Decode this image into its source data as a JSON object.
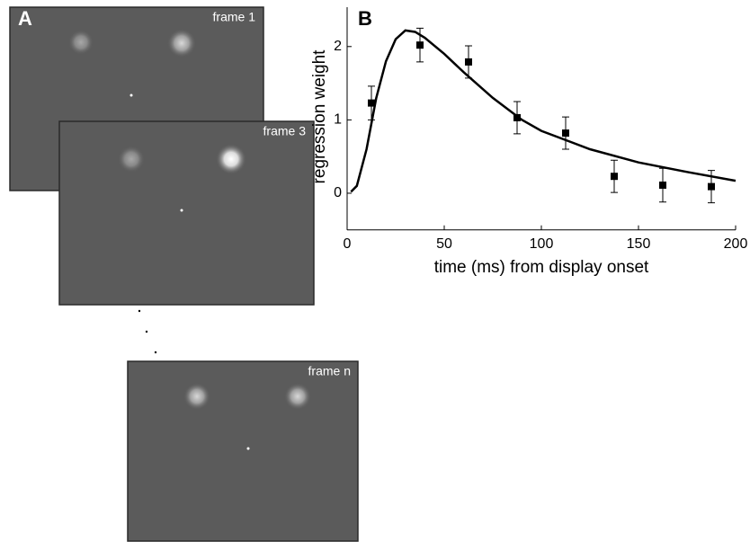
{
  "panel_a": {
    "label": "A",
    "frames": [
      "frame 1",
      "frame 3",
      "frame n"
    ]
  },
  "chart_data": {
    "type": "scatter",
    "panel_label": "B",
    "xlabel": "time (ms) from display onset",
    "ylabel": "regression weight",
    "xlim": [
      0,
      200
    ],
    "ylim": [
      -0.5,
      2.5
    ],
    "xticks": [
      0,
      50,
      100,
      150,
      200
    ],
    "yticks": [
      0,
      1,
      2
    ],
    "series": [
      {
        "type": "line",
        "color": "#000000",
        "x": [
          2,
          5,
          10,
          15,
          20,
          25,
          30,
          35,
          40,
          50,
          60,
          75,
          90,
          100,
          125,
          150,
          175,
          200
        ],
        "values": [
          0.02,
          0.1,
          0.6,
          1.3,
          1.8,
          2.1,
          2.22,
          2.2,
          2.12,
          1.9,
          1.65,
          1.3,
          1.0,
          0.85,
          0.6,
          0.42,
          0.29,
          0.17
        ]
      },
      {
        "type": "scatter",
        "color": "#000000",
        "x": [
          12.5,
          37.5,
          62.5,
          87.5,
          112.5,
          137.5,
          162.5,
          187.5
        ],
        "values": [
          1.23,
          2.02,
          1.79,
          1.03,
          0.82,
          0.23,
          0.11,
          0.09
        ],
        "errors": [
          0.23,
          0.23,
          0.22,
          0.22,
          0.22,
          0.22,
          0.23,
          0.22
        ]
      }
    ]
  }
}
